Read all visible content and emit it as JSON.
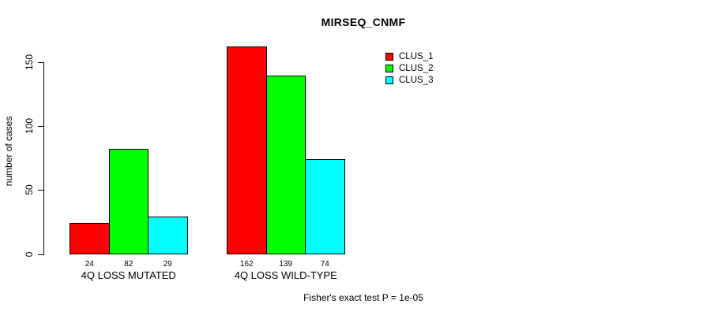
{
  "chart_data": {
    "type": "bar",
    "title": "MIRSEQ_CNMF",
    "ylabel": "number of cases",
    "xlabel": "",
    "annotation": "Fisher's exact test P = 1e-05",
    "categories": [
      "4Q LOSS MUTATED",
      "4Q LOSS WILD-TYPE"
    ],
    "series": [
      {
        "name": "CLUS_1",
        "color": "#FF0000",
        "values": [
          24,
          162
        ]
      },
      {
        "name": "CLUS_2",
        "color": "#00FF00",
        "values": [
          82,
          139
        ]
      },
      {
        "name": "CLUS_3",
        "color": "#00FFFF",
        "values": [
          29,
          74
        ]
      }
    ],
    "bar_value_labels": [
      [
        "24",
        "82",
        "29"
      ],
      [
        "162",
        "139",
        "74"
      ]
    ],
    "yticks": [
      0,
      50,
      100,
      150
    ],
    "ylim": [
      0,
      163
    ],
    "grid": false,
    "legend_position": "top-right",
    "background_color": "#FFFFFF",
    "axis_color": "#000000",
    "bar_border_color": "#000000"
  }
}
